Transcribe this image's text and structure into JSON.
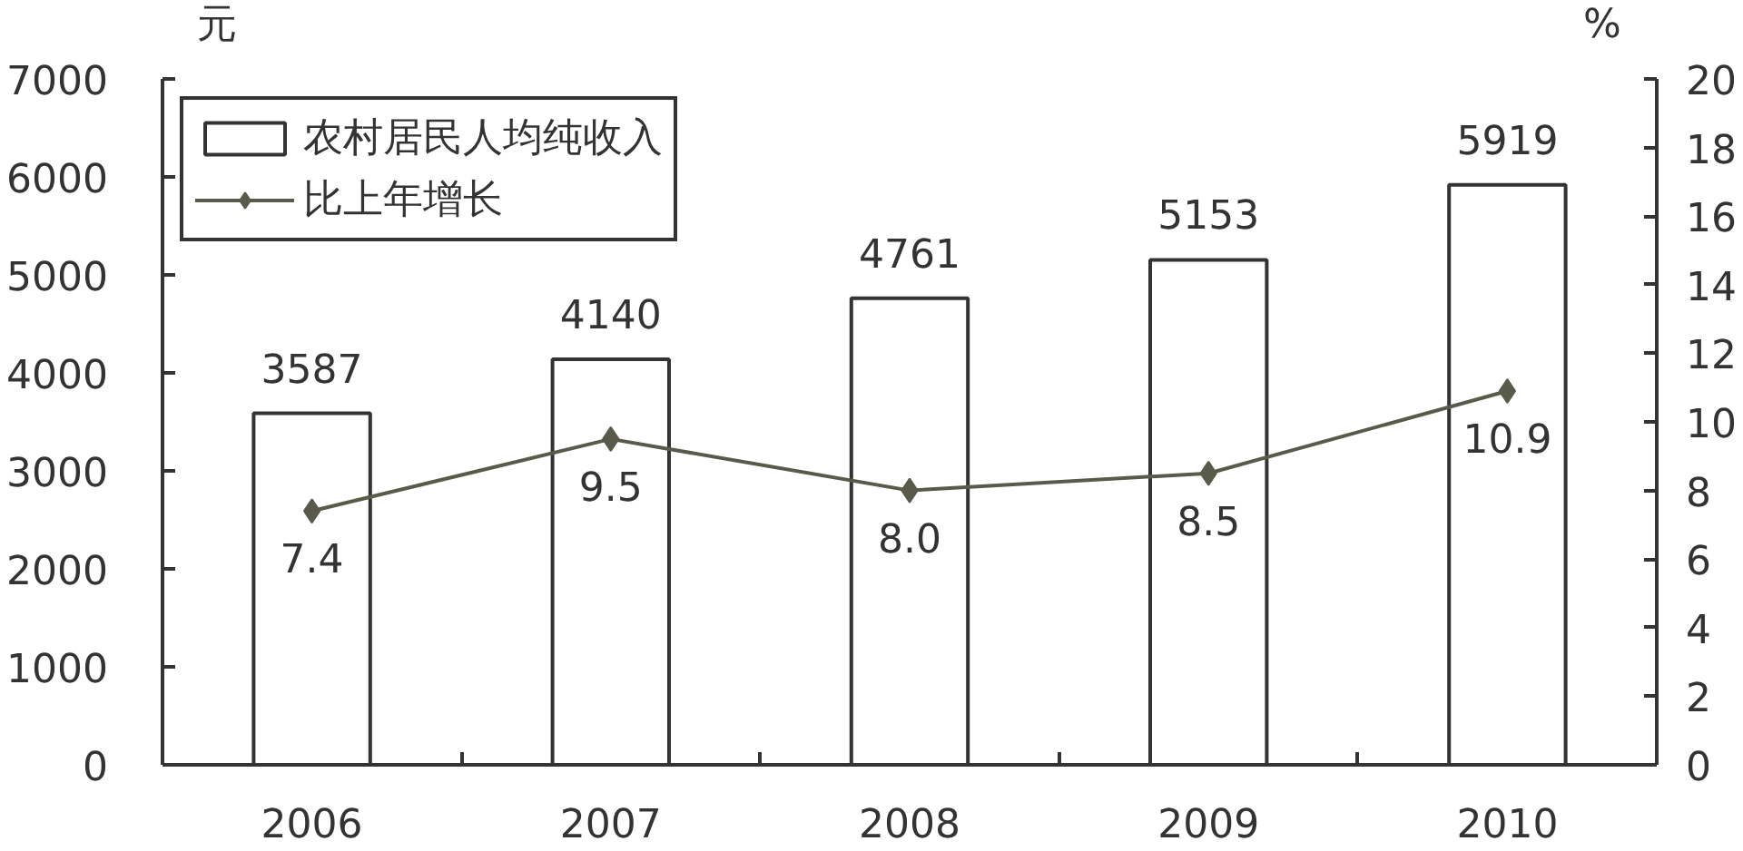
{
  "chart_data": {
    "type": "bar",
    "categories": [
      "2006",
      "2007",
      "2008",
      "2009",
      "2010"
    ],
    "ylabel": "元",
    "y2label": "%",
    "series": [
      {
        "name": "农村居民人均纯收入",
        "color": "#ffffff",
        "values": [
          3587,
          4140,
          4761,
          5153,
          5919
        ],
        "value_labels": [
          "3587",
          "4140",
          "4761",
          "5153",
          "5919"
        ]
      },
      {
        "type": "line",
        "name": "比上年增长",
        "color": "#5a5a4b",
        "axis": "y2",
        "values": [
          7.4,
          9.5,
          8.0,
          8.5,
          10.9
        ],
        "value_labels": [
          "7.4",
          "9.5",
          "8.0",
          "8.5",
          "10.9"
        ]
      }
    ],
    "ylim": [
      0,
      7000
    ],
    "yticks": [
      0,
      1000,
      2000,
      3000,
      4000,
      5000,
      6000,
      7000
    ],
    "y2lim": [
      0,
      20
    ],
    "y2ticks": [
      0,
      2,
      4,
      6,
      8,
      10,
      12,
      14,
      16,
      18,
      20
    ],
    "legend": "top left",
    "marker": "diamond",
    "grid": false
  }
}
